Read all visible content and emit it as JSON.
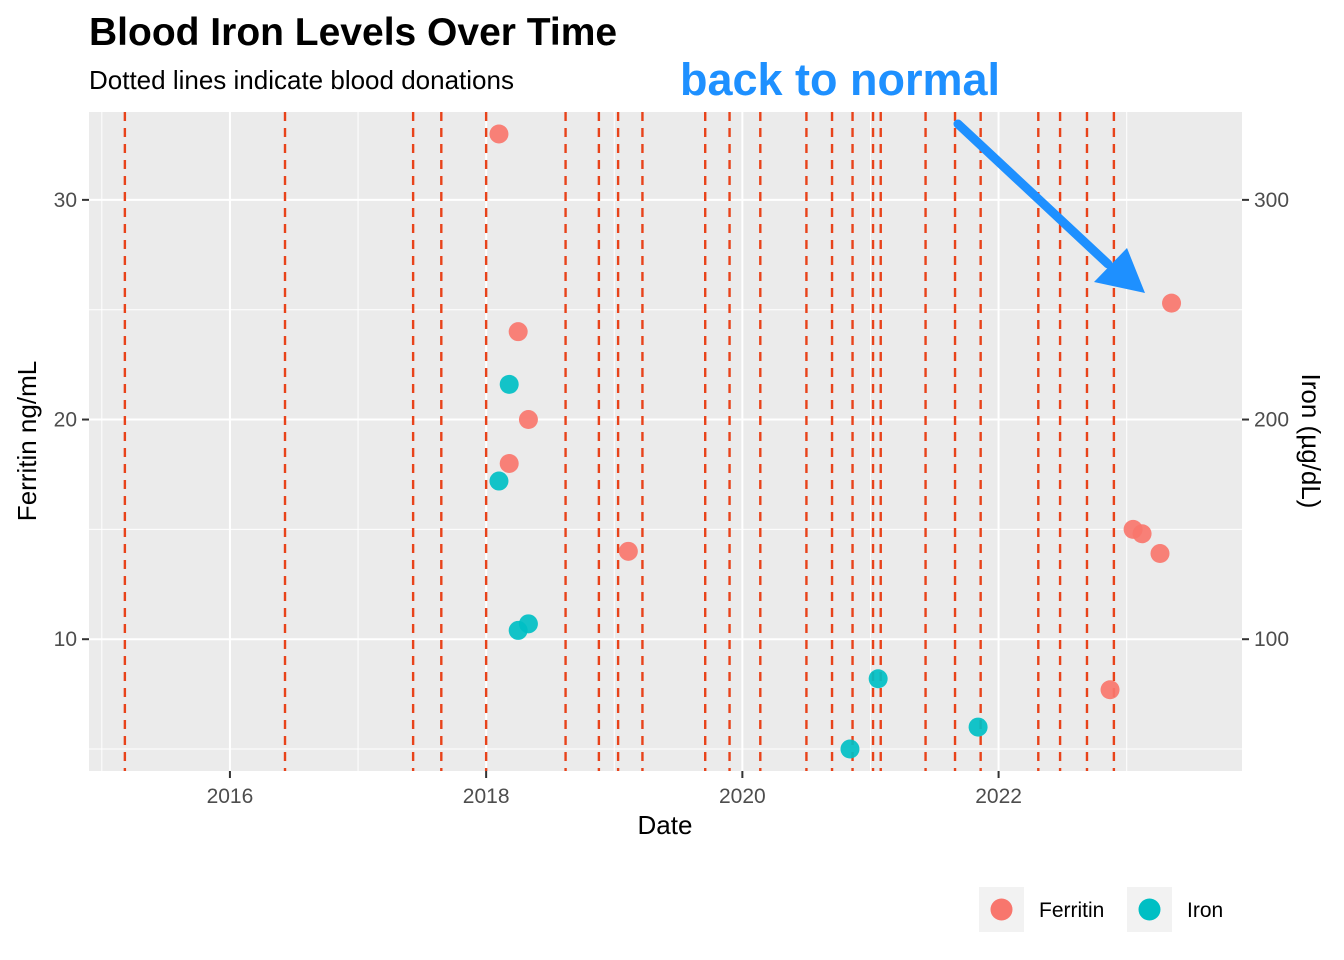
{
  "chart_data": {
    "type": "scatter",
    "title": "Blood Iron Levels Over Time",
    "subtitle": "Dotted lines indicate blood donations",
    "xlabel": "Date",
    "ylabel": "Ferritin ng/mL",
    "ylabel_right": "Iron (µg/dL)",
    "xlim": [
      2014.9,
      2023.9
    ],
    "ylim": [
      4.0,
      34.0
    ],
    "ylim_right": [
      40,
      340
    ],
    "x_ticks": [
      2016,
      2018,
      2020,
      2022
    ],
    "x_tick_labels": [
      "2016",
      "2018",
      "2020",
      "2022"
    ],
    "y_ticks": [
      10,
      20,
      30
    ],
    "y_tick_labels": [
      "10",
      "20",
      "30"
    ],
    "y_right_ticks": [
      100,
      200,
      300
    ],
    "y_right_tick_labels": [
      "100",
      "200",
      "300"
    ],
    "grid": true,
    "legend_position": "bottom-right",
    "donation_dates": [
      2015.18,
      2016.43,
      2017.43,
      2017.65,
      2018.0,
      2018.62,
      2018.88,
      2019.03,
      2019.22,
      2019.71,
      2019.9,
      2020.14,
      2020.5,
      2020.7,
      2020.86,
      2021.02,
      2021.08,
      2021.43,
      2021.66,
      2021.86,
      2022.31,
      2022.48,
      2022.69,
      2022.9
    ],
    "donation_line_color": "#e8431a",
    "series": [
      {
        "name": "Ferritin",
        "color": "#f8766d",
        "axis": "left",
        "x": [
          2018.1,
          2018.25,
          2018.33,
          2018.18,
          2019.11,
          2022.87,
          2023.05,
          2023.12,
          2023.26,
          2023.35
        ],
        "y": [
          33.0,
          24.0,
          20.0,
          18.0,
          14.0,
          7.7,
          15.0,
          14.8,
          13.9,
          25.3
        ]
      },
      {
        "name": "Iron",
        "color": "#00bfc4",
        "axis": "right",
        "x": [
          2018.18,
          2018.1,
          2018.25,
          2018.33,
          2020.84,
          2021.06,
          2021.84
        ],
        "y": [
          216,
          172,
          104,
          107,
          50,
          82,
          60
        ]
      }
    ],
    "annotation": {
      "text": "back to normal",
      "color": "#1e90ff"
    }
  }
}
